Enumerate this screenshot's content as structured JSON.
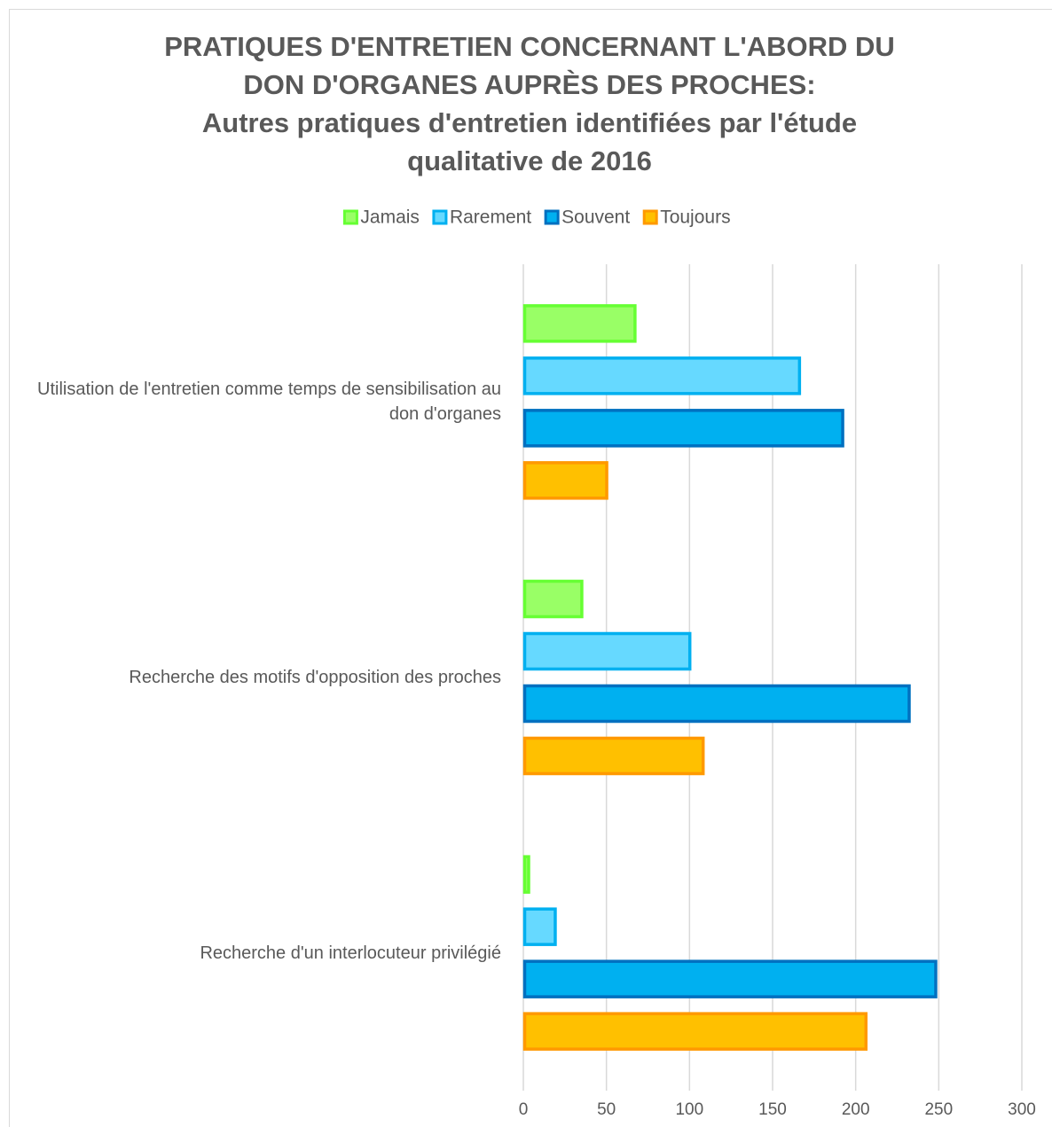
{
  "chart_data": {
    "type": "barh",
    "title": [
      "PRATIQUES D'ENTRETIEN CONCERNANT L'ABORD DU",
      "DON D'ORGANES AUPRÈS DES PROCHES:"
    ],
    "subtitle": [
      "Autres pratiques d'entretien identifiées par l'étude",
      "qualitative de 2016"
    ],
    "categories": [
      "Utilisation de l'entretien comme temps de sensibilisation au don d'organes",
      "Recherche des motifs d'opposition des proches",
      "Recherche d'un interlocuteur privilégié"
    ],
    "series": [
      {
        "name": "Jamais",
        "color": "#99ff66",
        "border": "#66ff33",
        "values": [
          68,
          36,
          4
        ]
      },
      {
        "name": "Rarement",
        "color": "#66d9ff",
        "border": "#00b0f0",
        "values": [
          167,
          101,
          20
        ]
      },
      {
        "name": "Souvent",
        "color": "#00b0f0",
        "border": "#0070c0",
        "values": [
          193,
          233,
          249
        ]
      },
      {
        "name": "Toujours",
        "color": "#ffc000",
        "border": "#ff9900",
        "values": [
          51,
          109,
          207
        ]
      }
    ],
    "xlim": [
      0,
      300
    ],
    "xticks": [
      0,
      50,
      100,
      150,
      200,
      250,
      300
    ],
    "grid": true,
    "legend": "top"
  }
}
